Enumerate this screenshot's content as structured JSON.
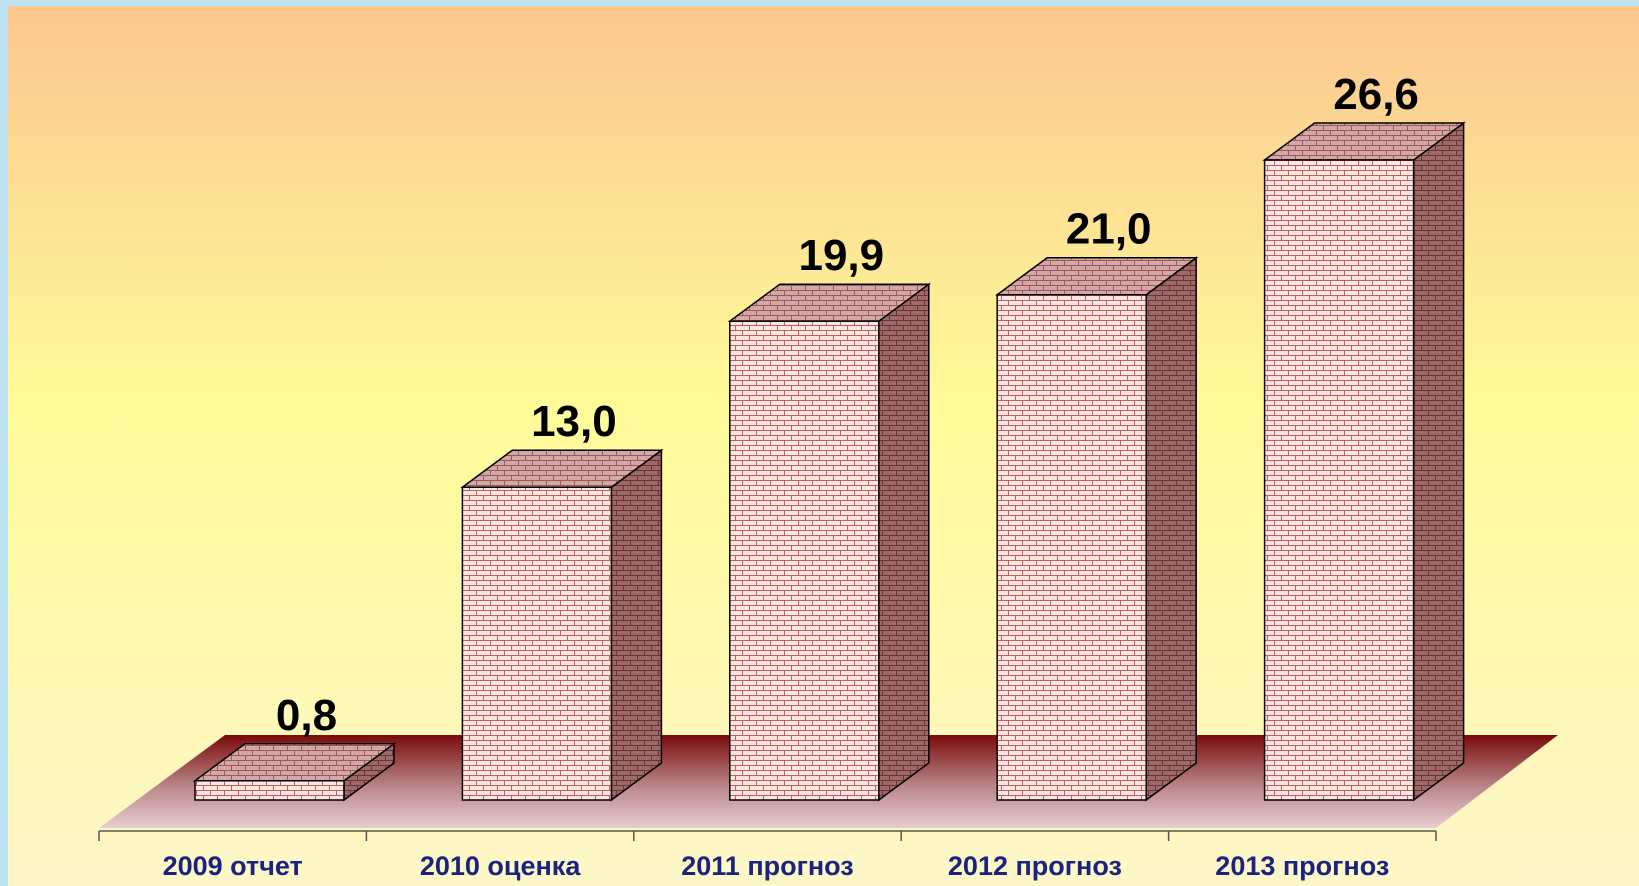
{
  "chart_data": {
    "type": "bar3d",
    "categories": [
      "2009 отчет",
      "2010 оценка",
      "2011 прогноз",
      "2012 прогноз",
      "2013 прогноз"
    ],
    "values": [
      0.8,
      13.0,
      19.9,
      21.0,
      26.6
    ],
    "value_labels": [
      "0,8",
      "13,0",
      "19,9",
      "21,0",
      "26,6"
    ],
    "color": "#fbe6e6"
  }
}
